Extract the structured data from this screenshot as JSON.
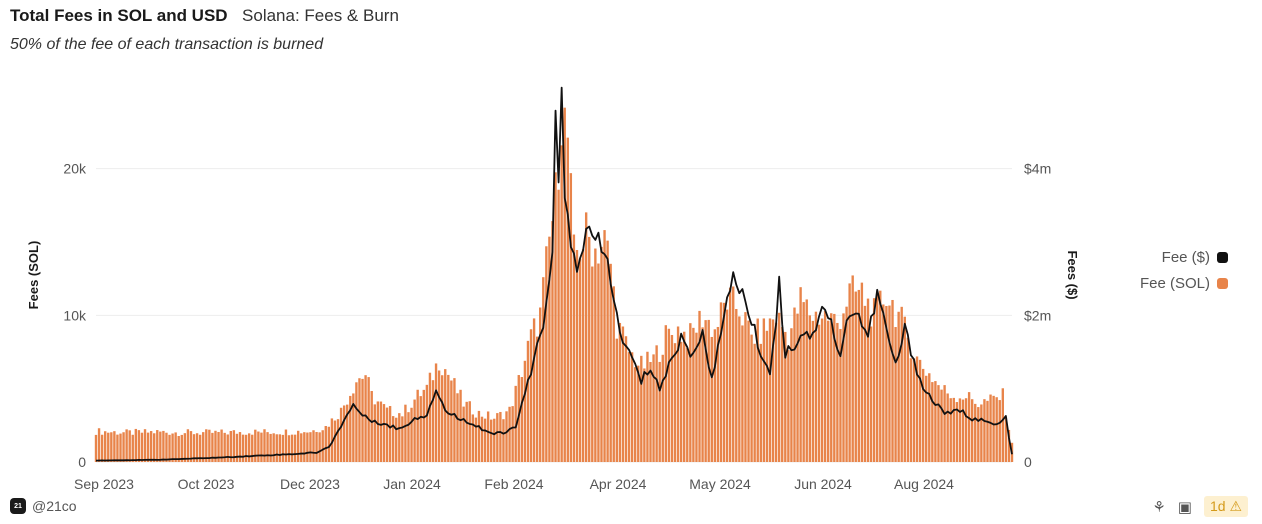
{
  "header": {
    "title": "Total Fees in SOL and USD",
    "subtitle": "Solana: Fees & Burn",
    "note": "50% of the fee of each transaction is burned"
  },
  "legend": {
    "items": [
      {
        "label": "Fee ($)",
        "color": "#111111"
      },
      {
        "label": "Fee (SOL)",
        "color": "#e8844a"
      }
    ]
  },
  "footer": {
    "logo_text": "21",
    "handle": "@21co",
    "badge": "1d",
    "icons": [
      "leaf-icon",
      "camera-icon",
      "warning-icon"
    ]
  },
  "chart_data": {
    "type": "bar",
    "x_tick_labels": [
      "Sep 2023",
      "Oct 2023",
      "Dec 2023",
      "Jan 2024",
      "Feb 2024",
      "Apr 2024",
      "May 2024",
      "Jun 2024",
      "Aug 2024"
    ],
    "y_left": {
      "label": "Fees (SOL)",
      "ticks": [
        0,
        10000,
        20000
      ],
      "tick_labels": [
        "0",
        "10k",
        "20k"
      ],
      "range": [
        0,
        25500
      ]
    },
    "y_right": {
      "label": "Fees ($)",
      "ticks": [
        0,
        2000000,
        4000000
      ],
      "tick_labels": [
        "0",
        "$2m",
        "$4m"
      ],
      "range": [
        0,
        5100000
      ]
    },
    "grid": true,
    "legend_position": "right",
    "series": [
      {
        "name": "Fee (SOL)",
        "kind": "bar",
        "axis": "left",
        "color": "#e8844a",
        "anchors": [
          [
            0,
            2100
          ],
          [
            10,
            2000
          ],
          [
            20,
            2050
          ],
          [
            30,
            2000
          ],
          [
            40,
            2000
          ],
          [
            50,
            2050
          ],
          [
            60,
            2050
          ],
          [
            70,
            2100
          ],
          [
            75,
            2400
          ],
          [
            80,
            3500
          ],
          [
            85,
            5600
          ],
          [
            88,
            6000
          ],
          [
            90,
            4500
          ],
          [
            95,
            3500
          ],
          [
            100,
            3300
          ],
          [
            105,
            4500
          ],
          [
            108,
            5000
          ],
          [
            112,
            7000
          ],
          [
            115,
            6000
          ],
          [
            120,
            4000
          ],
          [
            125,
            3300
          ],
          [
            130,
            3000
          ],
          [
            135,
            3500
          ],
          [
            138,
            5500
          ],
          [
            142,
            8500
          ],
          [
            145,
            10000
          ],
          [
            148,
            15000
          ],
          [
            150,
            18000
          ],
          [
            152,
            24000
          ],
          [
            154,
            22000
          ],
          [
            156,
            14000
          ],
          [
            160,
            15500
          ],
          [
            163,
            14500
          ],
          [
            166,
            15000
          ],
          [
            168,
            13500
          ],
          [
            170,
            9500
          ],
          [
            174,
            7500
          ],
          [
            178,
            6500
          ],
          [
            182,
            7000
          ],
          [
            186,
            8500
          ],
          [
            190,
            9000
          ],
          [
            194,
            8500
          ],
          [
            198,
            10000
          ],
          [
            202,
            9000
          ],
          [
            206,
            11000
          ],
          [
            210,
            10500
          ],
          [
            214,
            8500
          ],
          [
            218,
            9000
          ],
          [
            222,
            10000
          ],
          [
            226,
            8500
          ],
          [
            230,
            11000
          ],
          [
            234,
            10000
          ],
          [
            238,
            10000
          ],
          [
            242,
            9500
          ],
          [
            246,
            11500
          ],
          [
            250,
            11500
          ],
          [
            254,
            10000
          ],
          [
            258,
            11500
          ],
          [
            262,
            10000
          ],
          [
            265,
            8500
          ],
          [
            268,
            7000
          ],
          [
            272,
            6000
          ],
          [
            276,
            5000
          ],
          [
            280,
            4500
          ],
          [
            284,
            4500
          ],
          [
            288,
            4000
          ],
          [
            292,
            4200
          ],
          [
            296,
            4500
          ],
          [
            299,
            1200
          ]
        ]
      },
      {
        "name": "Fee ($)",
        "kind": "line",
        "axis": "right",
        "color": "#111111",
        "anchors": [
          [
            0,
            20000
          ],
          [
            20,
            30000
          ],
          [
            40,
            60000
          ],
          [
            55,
            90000
          ],
          [
            65,
            110000
          ],
          [
            72,
            130000
          ],
          [
            76,
            200000
          ],
          [
            80,
            500000
          ],
          [
            84,
            780000
          ],
          [
            88,
            600000
          ],
          [
            92,
            550000
          ],
          [
            96,
            480000
          ],
          [
            100,
            460000
          ],
          [
            104,
            600000
          ],
          [
            108,
            650000
          ],
          [
            111,
            1000000
          ],
          [
            114,
            700000
          ],
          [
            118,
            600000
          ],
          [
            122,
            550000
          ],
          [
            126,
            450000
          ],
          [
            130,
            380000
          ],
          [
            134,
            400000
          ],
          [
            137,
            500000
          ],
          [
            140,
            900000
          ],
          [
            143,
            1400000
          ],
          [
            146,
            1800000
          ],
          [
            149,
            3000000
          ],
          [
            150,
            4600000
          ],
          [
            151,
            3800000
          ],
          [
            152,
            4900000
          ],
          [
            153,
            3600000
          ],
          [
            155,
            2900000
          ],
          [
            157,
            2700000
          ],
          [
            159,
            3000000
          ],
          [
            161,
            3100000
          ],
          [
            163,
            3000000
          ],
          [
            165,
            2900000
          ],
          [
            167,
            2700000
          ],
          [
            169,
            2300000
          ],
          [
            171,
            1700000
          ],
          [
            174,
            1500000
          ],
          [
            178,
            1100000
          ],
          [
            181,
            1300000
          ],
          [
            184,
            1000000
          ],
          [
            188,
            1400000
          ],
          [
            191,
            1700000
          ],
          [
            194,
            1500000
          ],
          [
            198,
            1700000
          ],
          [
            201,
            1200000
          ],
          [
            205,
            1900000
          ],
          [
            208,
            2600000
          ],
          [
            211,
            2300000
          ],
          [
            214,
            1900000
          ],
          [
            217,
            1500000
          ],
          [
            220,
            1200000
          ],
          [
            223,
            2400000
          ],
          [
            225,
            1500000
          ],
          [
            228,
            1600000
          ],
          [
            231,
            1800000
          ],
          [
            234,
            1700000
          ],
          [
            237,
            2200000
          ],
          [
            240,
            1900000
          ],
          [
            243,
            1400000
          ],
          [
            246,
            2100000
          ],
          [
            249,
            2000000
          ],
          [
            252,
            1700000
          ],
          [
            255,
            2300000
          ],
          [
            258,
            1800000
          ],
          [
            261,
            1300000
          ],
          [
            264,
            1800000
          ],
          [
            267,
            1400000
          ],
          [
            270,
            1000000
          ],
          [
            274,
            800000
          ],
          [
            278,
            650000
          ],
          [
            282,
            700000
          ],
          [
            286,
            600000
          ],
          [
            290,
            550000
          ],
          [
            294,
            500000
          ],
          [
            297,
            600000
          ],
          [
            299,
            100000
          ]
        ]
      }
    ]
  }
}
